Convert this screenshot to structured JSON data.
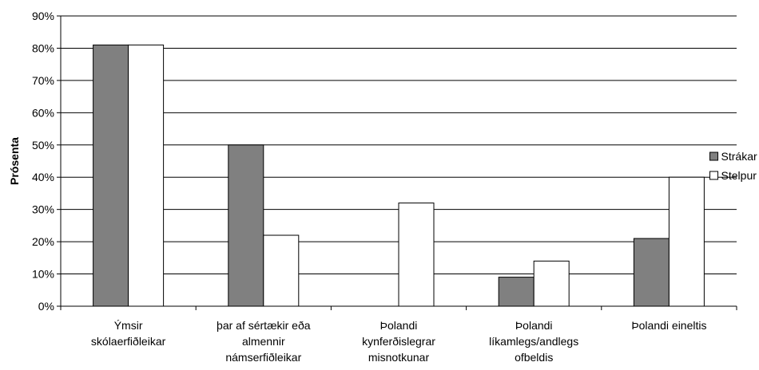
{
  "chart_data": {
    "type": "bar",
    "ylabel": "Prósenta",
    "ylim": [
      0,
      90
    ],
    "ytick_step": 10,
    "ytick_suffix": "%",
    "grid": true,
    "legend_position": "right",
    "categories": [
      [
        "Ýmsir",
        "skólaerfiðleikar"
      ],
      [
        "þar af sértækir eða",
        "almennir",
        "námserfiðleikar"
      ],
      [
        "Þolandi",
        "kynferðislegrar",
        "misnotkunar"
      ],
      [
        "Þolandi",
        "líkamlegs/andlegs",
        "ofbeldis"
      ],
      [
        "Þolandi eineltis"
      ]
    ],
    "series": [
      {
        "name": "Strákar",
        "color": "#808080",
        "values": [
          81,
          50,
          0,
          9,
          21
        ]
      },
      {
        "name": "Stelpur",
        "color": "#ffffff",
        "values": [
          81,
          22,
          32,
          14,
          40
        ]
      }
    ]
  }
}
